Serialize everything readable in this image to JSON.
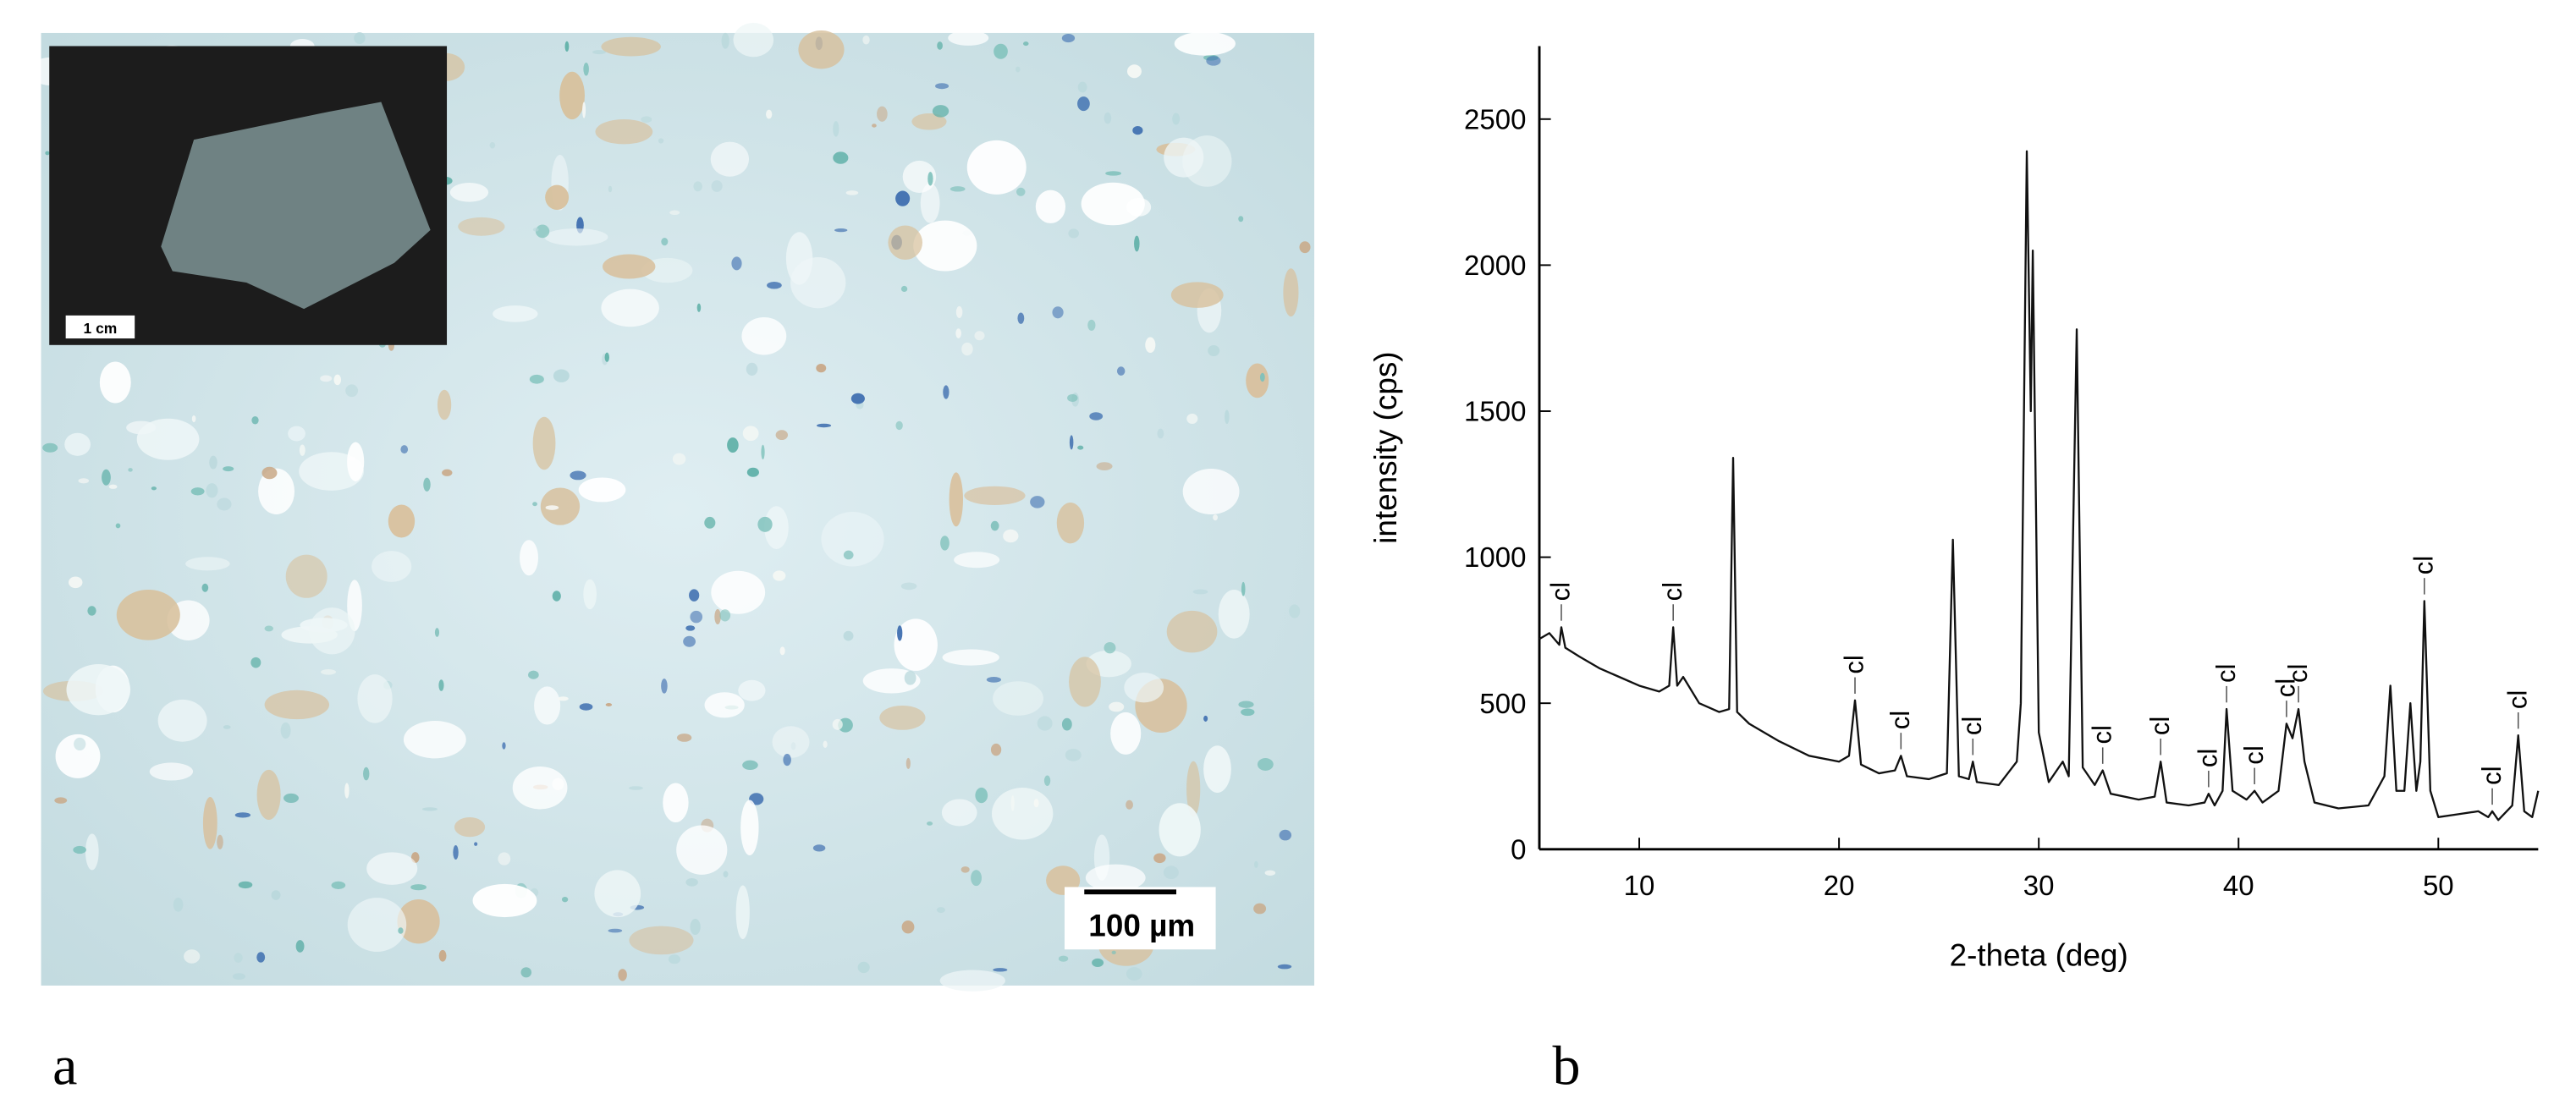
{
  "panel_a": {
    "label": "a",
    "scale_bar": "100 µm",
    "inset_scale_bar": "1 cm"
  },
  "panel_b": {
    "label": "b"
  },
  "chart_data": {
    "type": "line",
    "x_label": "2-theta (deg)",
    "y_label": "intensity (cps)",
    "xlim": [
      5,
      55
    ],
    "ylim": [
      0,
      2750
    ],
    "xticks": [
      10,
      20,
      30,
      40,
      50
    ],
    "yticks": [
      0,
      500,
      1000,
      1500,
      2000,
      2500
    ],
    "color": "#111111",
    "x": [
      5.0,
      5.5,
      6.0,
      6.1,
      6.3,
      7,
      8,
      9,
      10,
      11,
      11.5,
      11.7,
      11.9,
      12.2,
      13,
      14,
      14.5,
      14.7,
      14.9,
      15.5,
      17,
      18.5,
      20,
      20.5,
      20.8,
      21.1,
      22,
      22.8,
      23.1,
      23.4,
      24.5,
      25.4,
      25.7,
      26.0,
      26.5,
      26.7,
      26.9,
      28,
      28.9,
      29.1,
      29.4,
      29.6,
      29.7,
      30.0,
      30.5,
      31.2,
      31.5,
      31.9,
      32.2,
      32.8,
      33.2,
      33.6,
      35,
      35.8,
      36.1,
      36.4,
      37.5,
      38.3,
      38.5,
      38.8,
      39.2,
      39.4,
      39.7,
      40.4,
      40.8,
      41.2,
      42,
      42.4,
      42.7,
      43.0,
      43.3,
      43.8,
      45,
      46.5,
      47.3,
      47.6,
      47.9,
      48.3,
      48.6,
      48.9,
      49.1,
      49.3,
      49.6,
      50,
      51,
      52,
      52.5,
      52.7,
      53,
      53.7,
      54.0,
      54.3,
      54.7,
      55
    ],
    "values": [
      720,
      740,
      700,
      760,
      690,
      660,
      620,
      590,
      560,
      540,
      560,
      760,
      560,
      590,
      500,
      470,
      480,
      1340,
      470,
      430,
      370,
      320,
      300,
      320,
      510,
      290,
      260,
      270,
      320,
      250,
      240,
      260,
      1060,
      250,
      240,
      300,
      230,
      220,
      300,
      500,
      2390,
      1500,
      2050,
      400,
      230,
      300,
      250,
      1780,
      280,
      220,
      270,
      190,
      170,
      180,
      300,
      160,
      150,
      160,
      190,
      150,
      200,
      480,
      200,
      170,
      200,
      160,
      200,
      430,
      380,
      480,
      300,
      160,
      140,
      150,
      250,
      560,
      200,
      200,
      500,
      200,
      300,
      850,
      200,
      110,
      120,
      130,
      110,
      130,
      100,
      150,
      390,
      130,
      110,
      200
    ],
    "annotations": [
      {
        "text": "cl",
        "x": 6.1,
        "y": 760
      },
      {
        "text": "cl",
        "x": 11.7,
        "y": 760
      },
      {
        "text": "cl",
        "x": 20.8,
        "y": 510
      },
      {
        "text": "cl",
        "x": 23.1,
        "y": 320
      },
      {
        "text": "cl",
        "x": 26.7,
        "y": 300
      },
      {
        "text": "cl",
        "x": 33.2,
        "y": 270
      },
      {
        "text": "cl",
        "x": 36.1,
        "y": 300
      },
      {
        "text": "cl",
        "x": 38.5,
        "y": 190
      },
      {
        "text": "cl",
        "x": 39.4,
        "y": 480
      },
      {
        "text": "cl",
        "x": 40.8,
        "y": 200
      },
      {
        "text": "cl",
        "x": 42.4,
        "y": 430
      },
      {
        "text": "cl",
        "x": 43.0,
        "y": 480
      },
      {
        "text": "cl",
        "x": 49.3,
        "y": 850
      },
      {
        "text": "cl",
        "x": 52.7,
        "y": 130
      },
      {
        "text": "cl",
        "x": 54.0,
        "y": 390
      }
    ]
  }
}
